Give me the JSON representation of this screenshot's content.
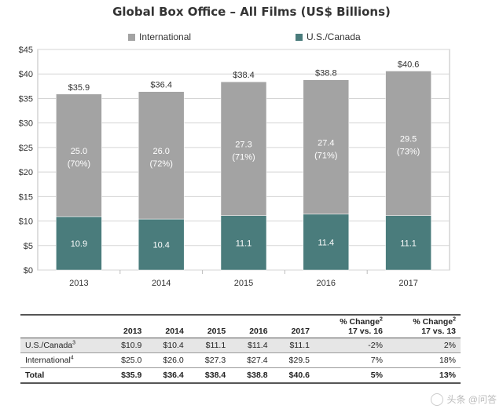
{
  "chart_data": {
    "type": "bar",
    "stacked": true,
    "title": "Global Box Office – All Films (US$ Billions)",
    "categories": [
      "2013",
      "2014",
      "2015",
      "2016",
      "2017"
    ],
    "series": [
      {
        "name": "U.S./Canada",
        "values": [
          10.9,
          10.4,
          11.1,
          11.4,
          11.1
        ],
        "color": "#4a7c7c",
        "labels": [
          "10.9",
          "10.4",
          "11.1",
          "11.4",
          "11.1"
        ]
      },
      {
        "name": "International",
        "values": [
          25.0,
          26.0,
          27.3,
          27.4,
          29.5
        ],
        "color": "#a3a3a3",
        "labels": [
          "25.0",
          "26.0",
          "27.3",
          "27.4",
          "29.5"
        ],
        "pct_labels": [
          "(70%)",
          "(72%)",
          "(71%)",
          "(71%)",
          "(73%)"
        ]
      }
    ],
    "totals": [
      35.9,
      36.4,
      38.4,
      38.8,
      40.6
    ],
    "total_labels": [
      "$35.9",
      "$36.4",
      "$38.4",
      "$38.8",
      "$40.6"
    ],
    "yticks": [
      "$0",
      "$5",
      "$10",
      "$15",
      "$20",
      "$25",
      "$30",
      "$35",
      "$40",
      "$45"
    ],
    "ylim": [
      0,
      45
    ],
    "grid": true,
    "legend_placement": "top"
  },
  "table": {
    "headers": [
      "2013",
      "2014",
      "2015",
      "2016",
      "2017"
    ],
    "change_header_1": "% Change",
    "change_header_1_sup": "2",
    "change_header_1_sub": "17 vs. 16",
    "change_header_2": "% Change",
    "change_header_2_sup": "2",
    "change_header_2_sub": "17 vs. 13",
    "rows": [
      {
        "label": "U.S./Canada",
        "sup": "3",
        "values": [
          "$10.9",
          "$10.4",
          "$11.1",
          "$11.4",
          "$11.1"
        ],
        "c1": "-2%",
        "c2": "2%"
      },
      {
        "label": "International",
        "sup": "4",
        "values": [
          "$25.0",
          "$26.0",
          "$27.3",
          "$27.4",
          "$29.5"
        ],
        "c1": "7%",
        "c2": "18%"
      },
      {
        "label": "Total",
        "sup": "",
        "values": [
          "$35.9",
          "$36.4",
          "$38.4",
          "$38.8",
          "$40.6"
        ],
        "c1": "5%",
        "c2": "13%"
      }
    ]
  },
  "watermark": "头条 @问答"
}
